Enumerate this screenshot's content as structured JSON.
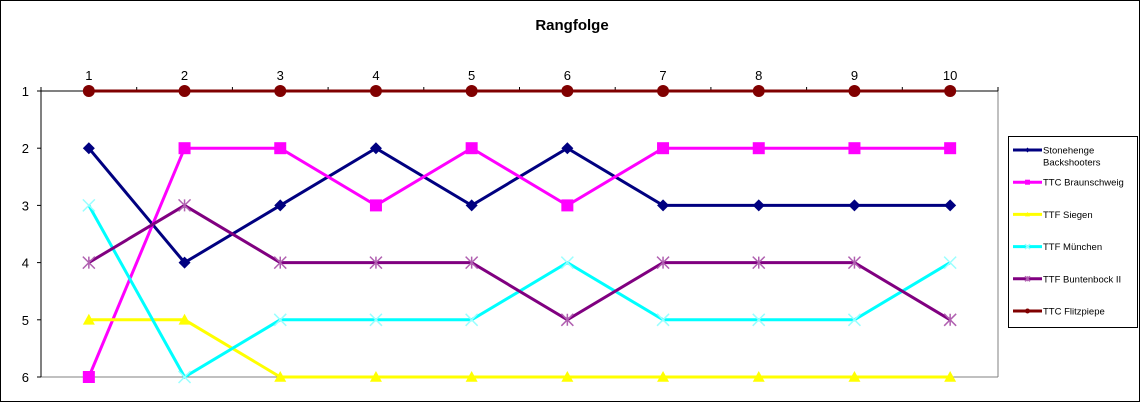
{
  "chart_data": {
    "type": "line",
    "title": "Rangfolge",
    "xlabel": "",
    "ylabel": "",
    "categories": [
      "1",
      "2",
      "3",
      "4",
      "5",
      "6",
      "7",
      "8",
      "9",
      "10"
    ],
    "ylim": [
      1,
      6
    ],
    "y_reversed": true,
    "y_ticks": [
      "1",
      "2",
      "3",
      "4",
      "5",
      "6"
    ],
    "grid": false,
    "legend_position": "right",
    "series": [
      {
        "name": "Stonehenge Backshooters",
        "name_lines": [
          "Stonehenge",
          "Backshooters"
        ],
        "color": "#000080",
        "marker": "diamond",
        "values": [
          2,
          4,
          3,
          2,
          3,
          2,
          3,
          3,
          3,
          3
        ]
      },
      {
        "name": "TTC Braunschweig",
        "name_lines": [
          "TTC Braunschweig"
        ],
        "color": "#FF00FF",
        "marker": "square",
        "values": [
          6,
          2,
          2,
          3,
          2,
          3,
          2,
          2,
          2,
          2
        ]
      },
      {
        "name": "TTF Siegen",
        "name_lines": [
          "TTF Siegen"
        ],
        "color": "#FFFF00",
        "marker": "triangle",
        "values": [
          5,
          5,
          6,
          6,
          6,
          6,
          6,
          6,
          6,
          6
        ]
      },
      {
        "name": "TTF München",
        "name_lines": [
          "TTF München"
        ],
        "color": "#00FFFF",
        "marker": "x",
        "values": [
          3,
          6,
          5,
          5,
          5,
          4,
          5,
          5,
          5,
          4
        ]
      },
      {
        "name": "TTF Buntenbock II",
        "name_lines": [
          "TTF Buntenbock II"
        ],
        "color": "#800080",
        "marker": "star",
        "values": [
          4,
          3,
          4,
          4,
          4,
          5,
          4,
          4,
          4,
          5
        ]
      },
      {
        "name": "TTC Flitzpiepe",
        "name_lines": [
          "TTC Flitzpiepe"
        ],
        "color": "#800000",
        "marker": "circle",
        "values": [
          1,
          1,
          1,
          1,
          1,
          1,
          1,
          1,
          1,
          1
        ]
      }
    ]
  }
}
